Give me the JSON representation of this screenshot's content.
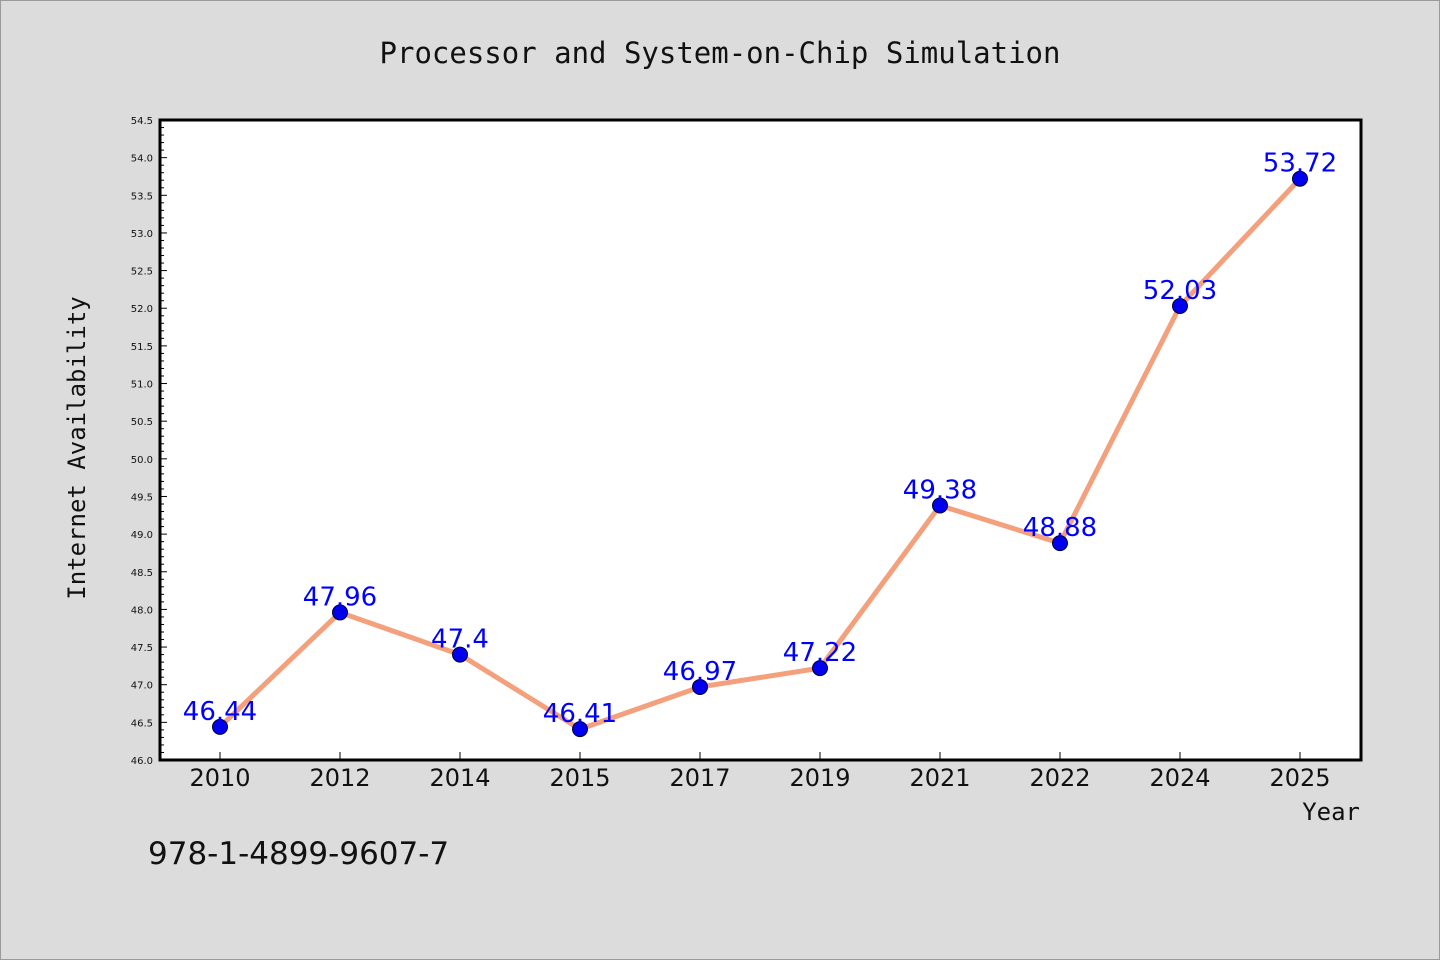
{
  "chart_data": {
    "type": "line",
    "title": "Processor and System-on-Chip Simulation",
    "xlabel": "Year",
    "ylabel": "Internet Availability",
    "categories": [
      "2010",
      "2012",
      "2014",
      "2015",
      "2017",
      "2019",
      "2021",
      "2022",
      "2024",
      "2025"
    ],
    "series": [
      {
        "values": [
          46.44,
          47.96,
          47.4,
          46.41,
          46.97,
          47.22,
          49.38,
          48.88,
          52.03,
          53.72
        ],
        "data_labels": [
          "46.44",
          "47.96",
          "47.4",
          "46.41",
          "46.97",
          "47.22",
          "49.38",
          "48.88",
          "52.03",
          "53.72"
        ],
        "line_color": "#f4a07c",
        "marker_color": "#0000ee",
        "label_color": "#0000ff"
      }
    ],
    "ylim": [
      46.0,
      54.5
    ],
    "yticks": [
      "46.0",
      "46.5",
      "47.0",
      "47.5",
      "48.0",
      "48.5",
      "49.0",
      "49.5",
      "50.0",
      "50.5",
      "51.0",
      "51.5",
      "52.0",
      "52.5",
      "53.0",
      "53.5",
      "54.0",
      "54.5"
    ],
    "grid": false,
    "legend": "none"
  },
  "footnote": "978-1-4899-9607-7",
  "colors": {
    "background": "#dcdcdc",
    "plot_area": "#ffffff",
    "line": "#f4a07c",
    "marker": "#0000ee",
    "label": "#0000ff"
  }
}
